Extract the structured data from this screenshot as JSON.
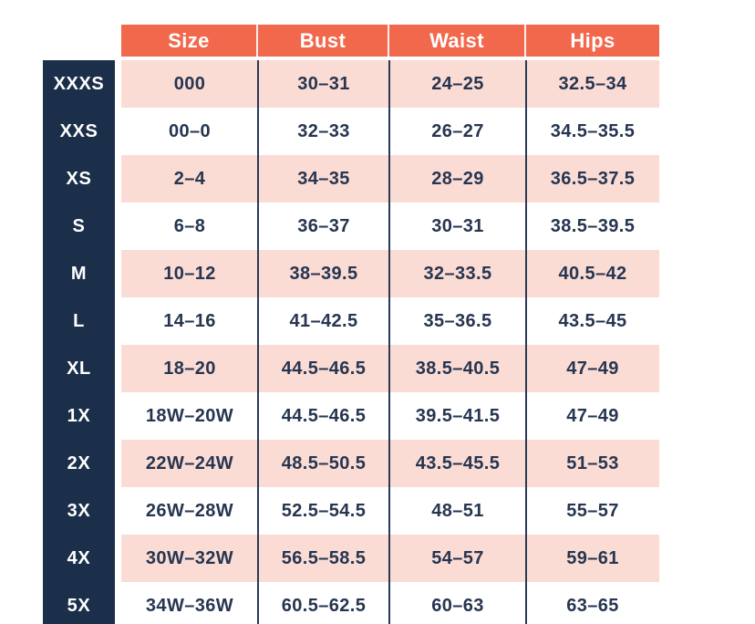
{
  "colors": {
    "header_bg": "#f2684c",
    "label_column_bg": "#1b2f4a",
    "row_pink": "#fbdcd5",
    "row_white": "#ffffff",
    "data_text": "#263550",
    "header_text": "#ffffff",
    "separator_line": "#2a3a56"
  },
  "chart_data": {
    "type": "table",
    "title": "",
    "columns": [
      "Size",
      "Bust",
      "Waist",
      "Hips"
    ],
    "row_label_column": "",
    "rows": [
      {
        "label": "XXXS",
        "size": "000",
        "bust": "30–31",
        "waist": "24–25",
        "hips": "32.5–34"
      },
      {
        "label": "XXS",
        "size": "00–0",
        "bust": "32–33",
        "waist": "26–27",
        "hips": "34.5–35.5"
      },
      {
        "label": "XS",
        "size": "2–4",
        "bust": "34–35",
        "waist": "28–29",
        "hips": "36.5–37.5"
      },
      {
        "label": "S",
        "size": "6–8",
        "bust": "36–37",
        "waist": "30–31",
        "hips": "38.5–39.5"
      },
      {
        "label": "M",
        "size": "10–12",
        "bust": "38–39.5",
        "waist": "32–33.5",
        "hips": "40.5–42"
      },
      {
        "label": "L",
        "size": "14–16",
        "bust": "41–42.5",
        "waist": "35–36.5",
        "hips": "43.5–45"
      },
      {
        "label": "XL",
        "size": "18–20",
        "bust": "44.5–46.5",
        "waist": "38.5–40.5",
        "hips": "47–49"
      },
      {
        "label": "1X",
        "size": "18W–20W",
        "bust": "44.5–46.5",
        "waist": "39.5–41.5",
        "hips": "47–49"
      },
      {
        "label": "2X",
        "size": "22W–24W",
        "bust": "48.5–50.5",
        "waist": "43.5–45.5",
        "hips": "51–53"
      },
      {
        "label": "3X",
        "size": "26W–28W",
        "bust": "52.5–54.5",
        "waist": "48–51",
        "hips": "55–57"
      },
      {
        "label": "4X",
        "size": "30W–32W",
        "bust": "56.5–58.5",
        "waist": "54–57",
        "hips": "59–61"
      },
      {
        "label": "5X",
        "size": "34W–36W",
        "bust": "60.5–62.5",
        "waist": "60–63",
        "hips": "63–65"
      }
    ]
  }
}
